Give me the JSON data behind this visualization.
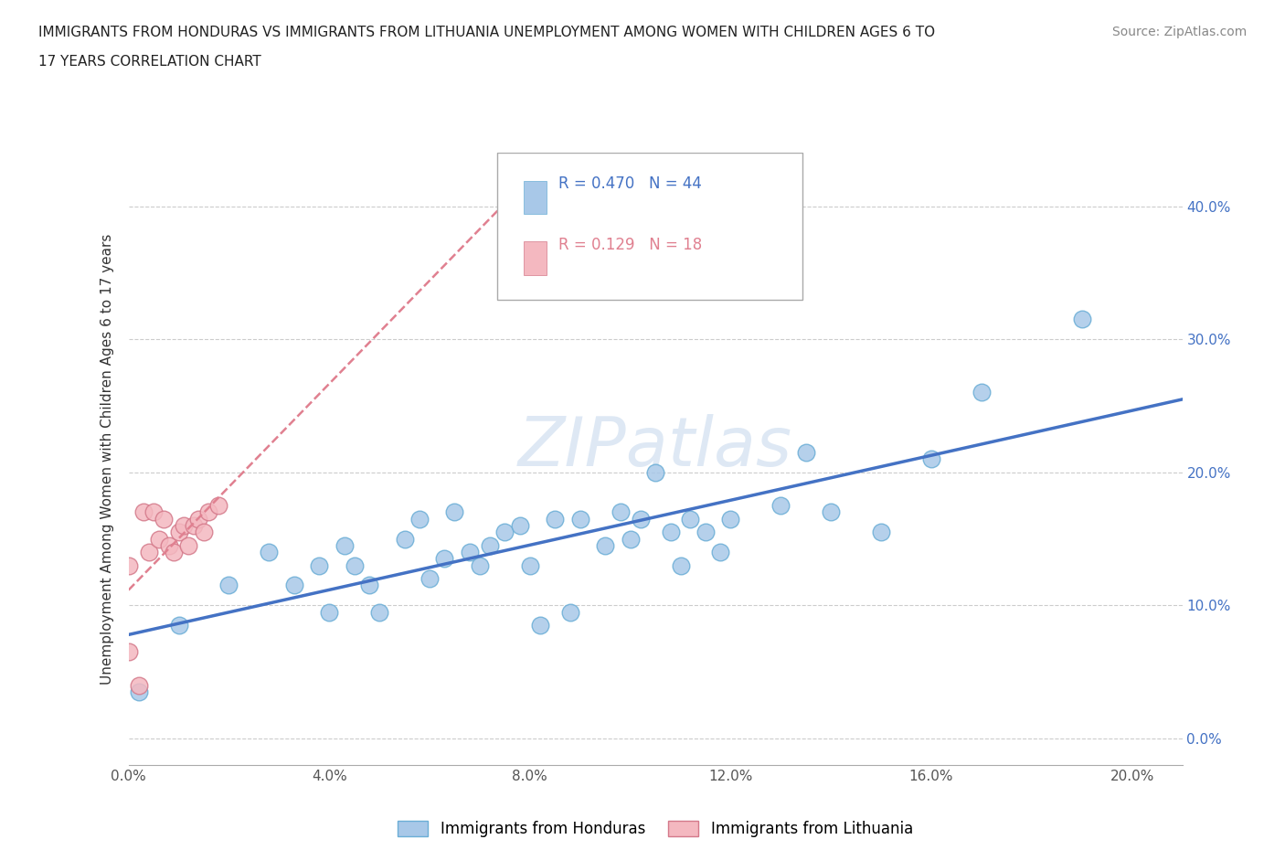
{
  "title_line1": "IMMIGRANTS FROM HONDURAS VS IMMIGRANTS FROM LITHUANIA UNEMPLOYMENT AMONG WOMEN WITH CHILDREN AGES 6 TO",
  "title_line2": "17 YEARS CORRELATION CHART",
  "source": "Source: ZipAtlas.com",
  "ylabel": "Unemployment Among Women with Children Ages 6 to 17 years",
  "xlim": [
    0.0,
    0.21
  ],
  "ylim": [
    -0.02,
    0.44
  ],
  "xticks": [
    0.0,
    0.04,
    0.08,
    0.12,
    0.16,
    0.2
  ],
  "yticks": [
    0.0,
    0.1,
    0.2,
    0.3,
    0.4
  ],
  "ytick_labels_right": [
    "0.0%",
    "10.0%",
    "20.0%",
    "30.0%",
    "40.0%"
  ],
  "r_honduras": 0.47,
  "n_honduras": 44,
  "r_lithuania": 0.129,
  "n_lithuania": 18,
  "color_honduras": "#a8c8e8",
  "color_honduras_edge": "#6baed6",
  "color_lithuania": "#f4b8c0",
  "color_lithuania_edge": "#d4798a",
  "color_line_honduras": "#4472c4",
  "color_line_lithuania": "#e08090",
  "watermark": "ZIPatlas",
  "honduras_x": [
    0.002,
    0.01,
    0.02,
    0.028,
    0.033,
    0.038,
    0.04,
    0.043,
    0.045,
    0.048,
    0.05,
    0.055,
    0.058,
    0.06,
    0.063,
    0.065,
    0.068,
    0.07,
    0.072,
    0.075,
    0.078,
    0.08,
    0.082,
    0.085,
    0.088,
    0.09,
    0.095,
    0.098,
    0.1,
    0.102,
    0.105,
    0.108,
    0.11,
    0.112,
    0.115,
    0.118,
    0.12,
    0.13,
    0.135,
    0.14,
    0.15,
    0.16,
    0.17,
    0.19
  ],
  "honduras_y": [
    0.035,
    0.085,
    0.115,
    0.14,
    0.115,
    0.13,
    0.095,
    0.145,
    0.13,
    0.115,
    0.095,
    0.15,
    0.165,
    0.12,
    0.135,
    0.17,
    0.14,
    0.13,
    0.145,
    0.155,
    0.16,
    0.13,
    0.085,
    0.165,
    0.095,
    0.165,
    0.145,
    0.17,
    0.15,
    0.165,
    0.2,
    0.155,
    0.13,
    0.165,
    0.155,
    0.14,
    0.165,
    0.175,
    0.215,
    0.17,
    0.155,
    0.21,
    0.26,
    0.315
  ],
  "lithuania_x": [
    0.0,
    0.0,
    0.002,
    0.003,
    0.004,
    0.005,
    0.006,
    0.007,
    0.008,
    0.009,
    0.01,
    0.011,
    0.012,
    0.013,
    0.014,
    0.015,
    0.016,
    0.018
  ],
  "lithuania_y": [
    0.065,
    0.13,
    0.04,
    0.17,
    0.14,
    0.17,
    0.15,
    0.165,
    0.145,
    0.14,
    0.155,
    0.16,
    0.145,
    0.16,
    0.165,
    0.155,
    0.17,
    0.175
  ],
  "background_color": "#ffffff",
  "grid_color": "#cccccc"
}
